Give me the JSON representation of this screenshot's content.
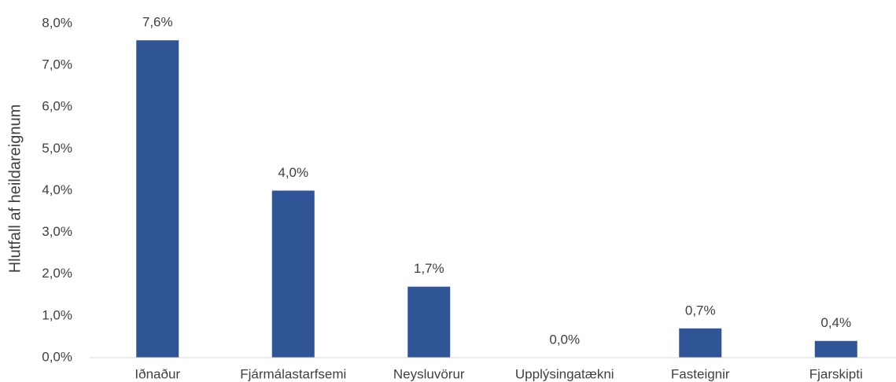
{
  "chart_data": {
    "type": "bar",
    "y_axis_label": "Hlutfall af heildareignum",
    "categories": [
      "Iðnaður",
      "Fjármálastarfsemi",
      "Neysluvörur",
      "Upplýsingatækni",
      "Fasteignir",
      "Fjarskipti"
    ],
    "values": [
      7.6,
      4.0,
      1.7,
      0.0,
      0.7,
      0.4
    ],
    "value_labels": [
      "7,6%",
      "4,0%",
      "1,7%",
      "0,0%",
      "0,7%",
      "0,4%"
    ],
    "color": "#2f5597",
    "ylim": [
      0,
      8
    ],
    "yticks": [
      {
        "value": 0,
        "label": "0,0%"
      },
      {
        "value": 1,
        "label": "1,0%"
      },
      {
        "value": 2,
        "label": "2,0%"
      },
      {
        "value": 3,
        "label": "3,0%"
      },
      {
        "value": 4,
        "label": "4,0%"
      },
      {
        "value": 5,
        "label": "5,0%"
      },
      {
        "value": 6,
        "label": "6,0%"
      },
      {
        "value": 7,
        "label": "7,0%"
      },
      {
        "value": 8,
        "label": "8,0%"
      }
    ],
    "grid": false
  }
}
